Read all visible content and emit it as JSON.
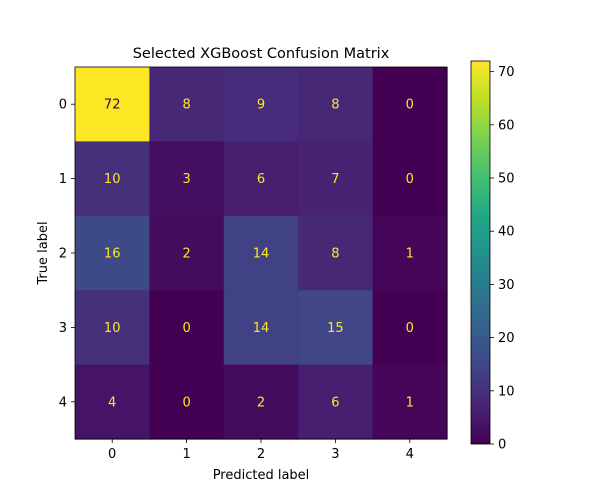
{
  "chart_data": {
    "type": "heatmap",
    "title": "Selected XGBoost Confusion Matrix",
    "xlabel": "Predicted label",
    "ylabel": "True label",
    "x_ticks": [
      "0",
      "1",
      "2",
      "3",
      "4"
    ],
    "y_ticks": [
      "0",
      "1",
      "2",
      "3",
      "4"
    ],
    "matrix": [
      [
        72,
        8,
        9,
        8,
        0
      ],
      [
        10,
        3,
        6,
        7,
        0
      ],
      [
        16,
        2,
        14,
        8,
        1
      ],
      [
        10,
        0,
        14,
        15,
        0
      ],
      [
        4,
        0,
        2,
        6,
        1
      ]
    ],
    "colormap": "viridis",
    "vmin": 0,
    "vmax": 72,
    "colorbar_ticks": [
      0,
      10,
      20,
      30,
      40,
      50,
      60,
      70
    ],
    "cell_text_color_dark_cells": "#fde725",
    "cell_text_color_light_cells": "#440154"
  }
}
